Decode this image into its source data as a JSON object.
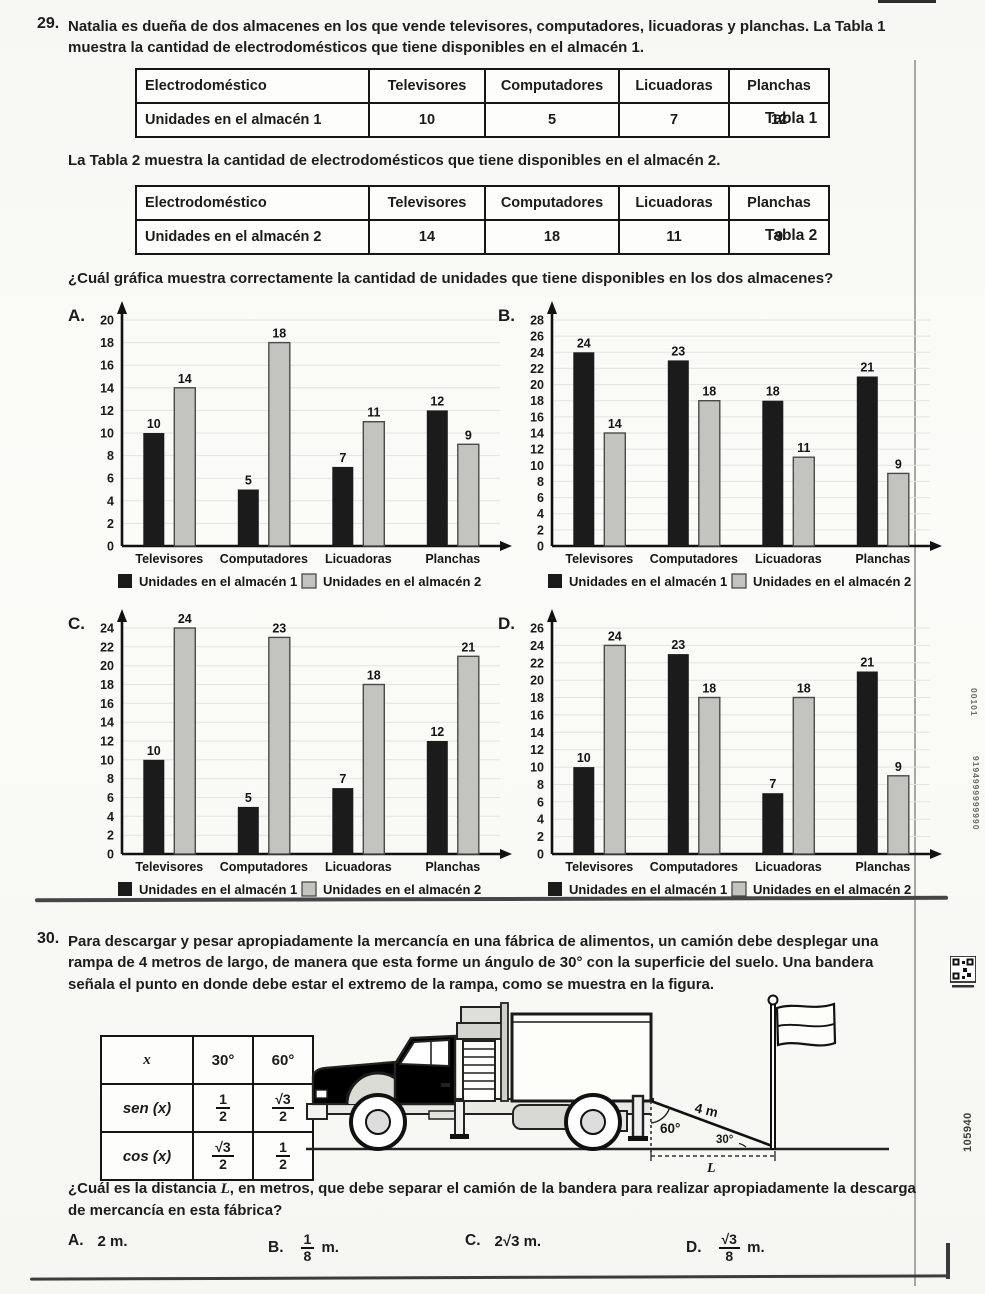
{
  "q29": {
    "number": "29.",
    "intro": "Natalia es dueña de dos almacenes en los que vende televisores, computadores, licuadoras y planchas. La Tabla 1 muestra la cantidad de electrodomésticos que tiene disponibles en el almacén 1.",
    "table1": {
      "caption": "Tabla 1",
      "headers": [
        "Electrodoméstico",
        "Televisores",
        "Computadores",
        "Licuadoras",
        "Planchas"
      ],
      "row_label": "Unidades en el almacén 1",
      "values": [
        "10",
        "5",
        "7",
        "12"
      ]
    },
    "between_text": "La Tabla 2 muestra la cantidad de electrodomésticos que tiene disponibles en el almacén 2.",
    "table2": {
      "caption": "Tabla 2",
      "headers": [
        "Electrodoméstico",
        "Televisores",
        "Computadores",
        "Licuadoras",
        "Planchas"
      ],
      "row_label": "Unidades en el almacén 2",
      "values": [
        "14",
        "18",
        "11",
        "9"
      ]
    },
    "question": "¿Cuál gráfica muestra correctamente la cantidad de unidades que tiene disponibles en los dos almacenes?"
  },
  "chart_data": [
    {
      "type": "bar",
      "option_label": "A.",
      "categories": [
        "Televisores",
        "Computadores",
        "Licuadoras",
        "Planchas"
      ],
      "series": [
        {
          "name": "Unidades en el almacén 1",
          "color": "#1b1b1b",
          "values": [
            10,
            5,
            7,
            12
          ]
        },
        {
          "name": "Unidades en el almacén 2",
          "color": "#c3c3bf",
          "values": [
            14,
            18,
            11,
            9
          ]
        }
      ],
      "ylim": [
        0,
        20
      ],
      "ytick_step": 2,
      "grid": true,
      "legend_position": "bottom"
    },
    {
      "type": "bar",
      "option_label": "B.",
      "categories": [
        "Televisores",
        "Computadores",
        "Licuadoras",
        "Planchas"
      ],
      "series": [
        {
          "name": "Unidades en el almacén 1",
          "color": "#1b1b1b",
          "values": [
            24,
            23,
            18,
            21
          ]
        },
        {
          "name": "Unidades en el almacén 2",
          "color": "#c3c3bf",
          "values": [
            14,
            18,
            11,
            9
          ]
        }
      ],
      "ylim": [
        0,
        28
      ],
      "ytick_step": 2,
      "grid": true,
      "legend_position": "bottom"
    },
    {
      "type": "bar",
      "option_label": "C.",
      "categories": [
        "Televisores",
        "Computadores",
        "Licuadoras",
        "Planchas"
      ],
      "series": [
        {
          "name": "Unidades en el almacén 1",
          "color": "#1b1b1b",
          "values": [
            10,
            5,
            7,
            12
          ]
        },
        {
          "name": "Unidades en el almacén 2",
          "color": "#c3c3bf",
          "values": [
            24,
            23,
            18,
            21
          ]
        }
      ],
      "ylim": [
        0,
        24
      ],
      "ytick_step": 2,
      "grid": true,
      "legend_position": "bottom"
    },
    {
      "type": "bar",
      "option_label": "D.",
      "categories": [
        "Televisores",
        "Computadores",
        "Licuadoras",
        "Planchas"
      ],
      "series": [
        {
          "name": "Unidades en el almacén 1",
          "color": "#1b1b1b",
          "values": [
            10,
            23,
            7,
            21
          ]
        },
        {
          "name": "Unidades en el almacén 2",
          "color": "#c3c3bf",
          "values": [
            24,
            18,
            18,
            9
          ]
        }
      ],
      "ylim": [
        0,
        26
      ],
      "ytick_step": 2,
      "grid": true,
      "legend_position": "bottom"
    }
  ],
  "q30": {
    "number": "30.",
    "intro": "Para descargar y pesar apropiadamente la mercancía en una fábrica de alimentos, un camión debe desplegar una rampa de 4 metros de largo, de manera que esta forme un ángulo de 30° con la superficie del suelo. Una bandera señala el punto en donde debe estar el extremo de la rampa, como se muestra en la figura.",
    "trig_table": {
      "col_headers": [
        "x",
        "30°",
        "60°"
      ],
      "rows": [
        {
          "label": "sen (x)",
          "cells": [
            {
              "num": "1",
              "den": "2"
            },
            {
              "num": "√3",
              "den": "2"
            }
          ]
        },
        {
          "label": "cos (x)",
          "cells": [
            {
              "num": "√3",
              "den": "2"
            },
            {
              "num": "1",
              "den": "2"
            }
          ]
        }
      ]
    },
    "figure": {
      "ramp_length": "4 m",
      "top_angle": "60°",
      "bottom_angle": "30°",
      "distance_label": "L"
    },
    "question_pre": "¿Cuál es la distancia ",
    "question_var": "L",
    "question_post": ", en metros, que debe separar el camión de la bandera para realizar apropiadamente la descarga de mercancía en esta fábrica?",
    "options": [
      {
        "letter": "A.",
        "type": "text",
        "text": "2 m."
      },
      {
        "letter": "B.",
        "type": "frac",
        "num": "1",
        "den": "8",
        "suffix": "m."
      },
      {
        "letter": "C.",
        "type": "text",
        "text": "2√3 m."
      },
      {
        "letter": "D.",
        "type": "frac",
        "num": "√3",
        "den": "8",
        "suffix": "m."
      }
    ]
  },
  "margin": {
    "digits_top": "00101",
    "digits_mid": "9194999999990",
    "code_number": "105940"
  }
}
